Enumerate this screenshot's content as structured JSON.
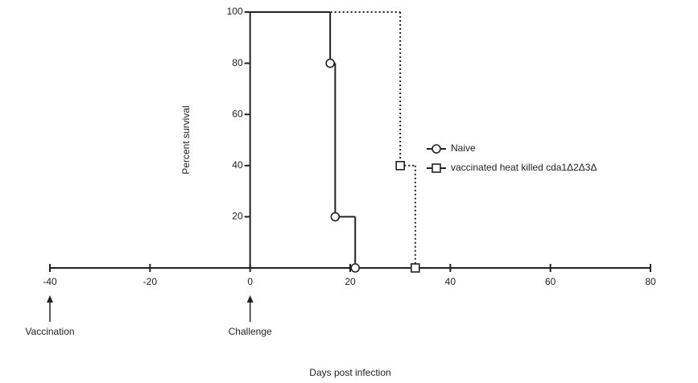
{
  "chart_data": {
    "type": "survival",
    "xlabel": "Days post infection",
    "ylabel": "Percent survival",
    "xlim": [
      -40,
      80
    ],
    "ylim": [
      0,
      100
    ],
    "xticks": [
      -40,
      -20,
      0,
      20,
      40,
      60,
      80
    ],
    "yticks": [
      20,
      40,
      60,
      80,
      100
    ],
    "series": [
      {
        "name": "Naive",
        "color": "#222222",
        "marker": "circle",
        "dash": "solid",
        "x": [
          0,
          16,
          17,
          21
        ],
        "values": [
          100,
          80,
          20,
          0
        ]
      },
      {
        "name": "vaccinated heat killed cda1Δ2Δ3Δ",
        "color": "#222222",
        "marker": "square",
        "dash": "dotted",
        "x": [
          0,
          30,
          33
        ],
        "values": [
          100,
          40,
          0
        ]
      }
    ],
    "annotations": [
      {
        "text": "Vaccination",
        "x": -40
      },
      {
        "text": "Challenge",
        "x": 0
      }
    ]
  }
}
